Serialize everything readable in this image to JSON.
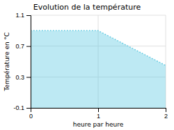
{
  "chart_data": {
    "type": "area",
    "title": "Evolution de la température",
    "xlabel": "heure par heure",
    "ylabel": "Température en °C",
    "x": [
      0,
      1,
      2
    ],
    "values": [
      0.9,
      0.9,
      0.45
    ],
    "color": "#5bc8e0",
    "line_style": "dotted",
    "xlim": [
      0,
      2
    ],
    "ylim": [
      -0.1,
      1.1
    ],
    "xticks": [
      0,
      1,
      2
    ],
    "yticks": [
      -0.1,
      0.3,
      0.7,
      1.1
    ],
    "grid": true
  }
}
